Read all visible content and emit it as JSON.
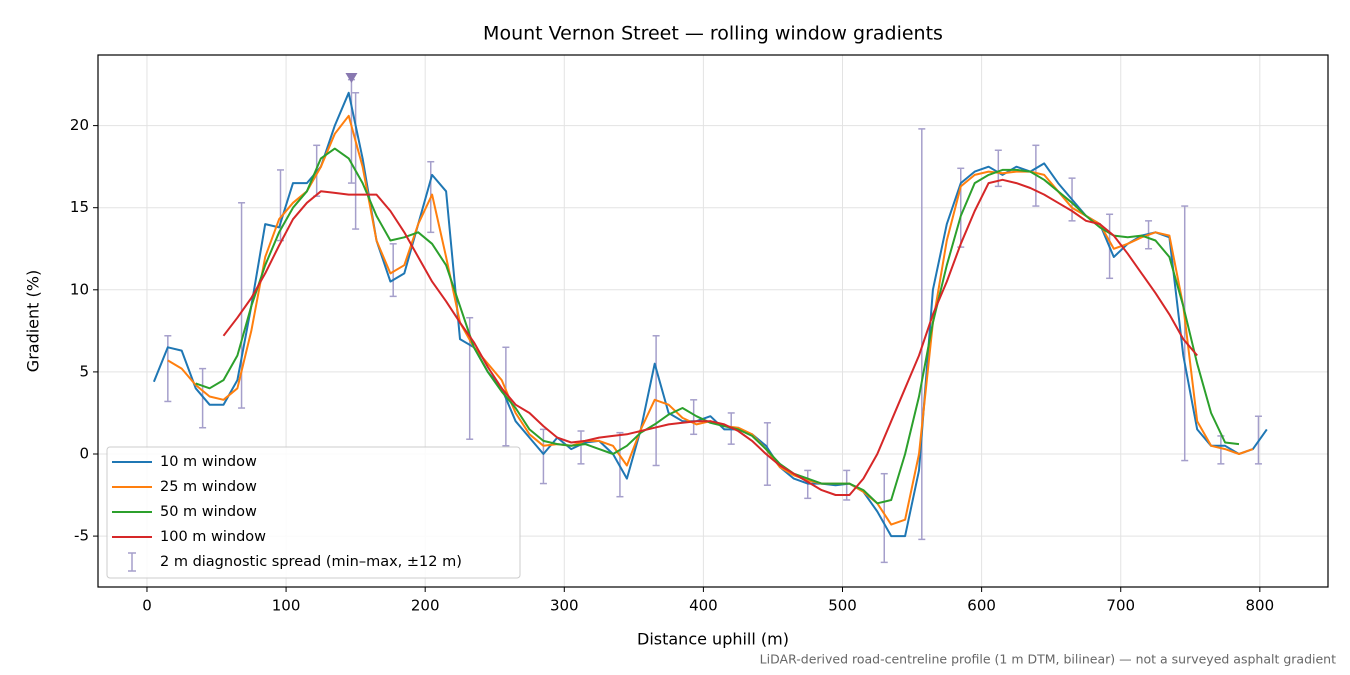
{
  "chart_data": {
    "type": "line",
    "title": "Mount Vernon Street — rolling window gradients",
    "xlabel": "Distance uphill (m)",
    "ylabel": "Gradient (%)",
    "footnote": "LiDAR-derived road-centreline profile (1 m DTM, bilinear) — not a surveyed asphalt gradient",
    "xlim": [
      -35.2,
      849
    ],
    "ylim": [
      -8.1,
      24.3
    ],
    "xticks": [
      0,
      100,
      200,
      300,
      400,
      500,
      600,
      700,
      800
    ],
    "yticks": [
      -5,
      0,
      5,
      10,
      15,
      20
    ],
    "grid": true,
    "legend": "lower left",
    "x": [
      5,
      15,
      25,
      35,
      45,
      55,
      65,
      75,
      85,
      95,
      105,
      115,
      125,
      135,
      145,
      155,
      165,
      175,
      185,
      195,
      205,
      215,
      225,
      235,
      245,
      255,
      265,
      275,
      285,
      295,
      305,
      315,
      325,
      335,
      345,
      355,
      365,
      375,
      385,
      395,
      405,
      415,
      425,
      435,
      445,
      455,
      465,
      475,
      485,
      495,
      505,
      515,
      525,
      535,
      545,
      555,
      565,
      575,
      585,
      595,
      605,
      615,
      625,
      635,
      645,
      655,
      665,
      675,
      685,
      695,
      705,
      715,
      725,
      735,
      745,
      755,
      765,
      775,
      785,
      795,
      805
    ],
    "series": [
      {
        "name": "10 m window",
        "color": "#1f77b4",
        "values": [
          4.4,
          6.5,
          6.3,
          4.0,
          3.0,
          3.0,
          4.5,
          9,
          14,
          13.8,
          16.5,
          16.5,
          17.5,
          20,
          22,
          18,
          13,
          10.5,
          11,
          14,
          17,
          16,
          7,
          6.5,
          5,
          4,
          2,
          1,
          0,
          1,
          0.3,
          0.7,
          0.8,
          0,
          -1.5,
          1.5,
          5.5,
          2.5,
          2,
          2,
          2.3,
          1.5,
          1.5,
          1.2,
          0.5,
          -0.8,
          -1.5,
          -1.8,
          -1.8,
          -1.9,
          -1.8,
          -2.3,
          -3.5,
          -5,
          -5,
          -1,
          10,
          14,
          16.5,
          17.2,
          17.5,
          17,
          17.5,
          17.2,
          17.7,
          16.5,
          15.5,
          14.5,
          14,
          12,
          12.8,
          13.3,
          13.5,
          13.2,
          6,
          1.5,
          0.5,
          0.5,
          0,
          0.3,
          1.5
        ]
      },
      {
        "name": "25 m window",
        "color": "#ff7f0e",
        "values": [
          null,
          5.7,
          5.2,
          4.2,
          3.5,
          3.3,
          4,
          7.5,
          12,
          14.3,
          15.3,
          16,
          17.5,
          19.5,
          20.6,
          17.5,
          13,
          11,
          11.5,
          14,
          15.8,
          12,
          8,
          6.5,
          5.5,
          4.5,
          2.5,
          1.2,
          0.5,
          0.6,
          0.5,
          0.8,
          0.8,
          0.5,
          -0.7,
          1.5,
          3.3,
          3,
          2.2,
          1.8,
          2,
          1.7,
          1.6,
          1.2,
          0.3,
          -0.8,
          -1.3,
          -1.6,
          -1.8,
          -1.8,
          -1.8,
          -2.3,
          -3,
          -4.3,
          -4,
          0,
          8,
          13,
          16.3,
          17,
          17.2,
          17.1,
          17.2,
          17.2,
          17,
          16,
          15,
          14.5,
          14,
          12.5,
          12.8,
          13.2,
          13.5,
          13.3,
          9,
          2,
          0.5,
          0.3,
          0,
          0.3,
          null
        ]
      },
      {
        "name": "50 m window",
        "color": "#2ca02c",
        "values": [
          null,
          null,
          null,
          4.3,
          4,
          4.5,
          6,
          9,
          11.5,
          13.5,
          15,
          16,
          18,
          18.6,
          18,
          16.5,
          14.5,
          13,
          13.2,
          13.5,
          12.8,
          11.5,
          9,
          6.5,
          5,
          3.8,
          2.8,
          1.5,
          0.8,
          0.6,
          0.5,
          0.6,
          0.3,
          0,
          0.5,
          1.3,
          1.8,
          2.4,
          2.8,
          2.3,
          1.9,
          1.7,
          1.5,
          1.1,
          0.3,
          -0.6,
          -1.2,
          -1.5,
          -1.8,
          -1.8,
          -1.8,
          -2.2,
          -3,
          -2.8,
          0,
          3.5,
          8,
          11.5,
          14.5,
          16.5,
          17,
          17.3,
          17.3,
          17.2,
          16.7,
          16,
          15.3,
          14.5,
          13.8,
          13.3,
          13.2,
          13.3,
          13,
          12,
          9,
          5.5,
          2.5,
          0.7,
          0.6,
          null,
          null
        ]
      },
      {
        "name": "100 m window",
        "color": "#d62728",
        "values": [
          null,
          null,
          null,
          null,
          null,
          7.2,
          8.3,
          9.5,
          11,
          12.7,
          14.3,
          15.3,
          16,
          15.9,
          15.8,
          15.8,
          15.8,
          14.8,
          13.5,
          12,
          10.5,
          9.3,
          8,
          6.8,
          5.3,
          4,
          3,
          2.5,
          1.7,
          1,
          0.7,
          0.8,
          1,
          1.1,
          1.2,
          1.4,
          1.6,
          1.8,
          1.9,
          2,
          2,
          1.8,
          1.4,
          0.8,
          0,
          -0.7,
          -1.2,
          -1.7,
          -2.2,
          -2.5,
          -2.5,
          -1.5,
          0,
          2,
          4,
          6,
          8.5,
          10.5,
          12.8,
          14.8,
          16.5,
          16.7,
          16.5,
          16.2,
          15.8,
          15.3,
          14.8,
          14.2,
          14,
          13.3,
          12.2,
          11,
          9.8,
          8.5,
          7,
          6,
          null,
          null,
          null,
          null,
          null
        ]
      }
    ],
    "errorbars": {
      "name": "2 m diagnostic spread (min–max, ±12 m)",
      "color": "#a59fcb",
      "x": [
        15,
        40,
        68,
        96,
        122,
        147,
        150,
        177,
        204,
        232,
        258,
        285,
        312,
        340,
        366,
        393,
        420,
        446,
        475,
        503,
        530,
        557,
        585,
        612,
        639,
        665,
        692,
        720,
        746,
        772,
        799
      ],
      "low": [
        3.2,
        1.6,
        2.8,
        13,
        15.7,
        16.5,
        13.7,
        9.6,
        13.5,
        0.9,
        0.5,
        -1.8,
        -0.6,
        -2.6,
        -0.7,
        1.2,
        0.6,
        -1.9,
        -2.7,
        -2.8,
        -6.6,
        -5.2,
        12.6,
        16.3,
        15.1,
        14.2,
        10.7,
        12.5,
        -0.4,
        -0.6,
        -0.6
      ],
      "high": [
        7.2,
        5.2,
        15.3,
        17.3,
        18.8,
        22.8,
        22,
        12.8,
        17.8,
        8.3,
        6.5,
        1.5,
        1.4,
        1.3,
        7.2,
        3.3,
        2.5,
        1.9,
        -1,
        -1,
        -1.2,
        19.8,
        17.4,
        18.5,
        18.8,
        16.8,
        14.6,
        14.2,
        15.1,
        1.1,
        2.3
      ]
    },
    "peak_marker": {
      "x": 147,
      "y": 22.9,
      "color": "#8878b0"
    }
  }
}
